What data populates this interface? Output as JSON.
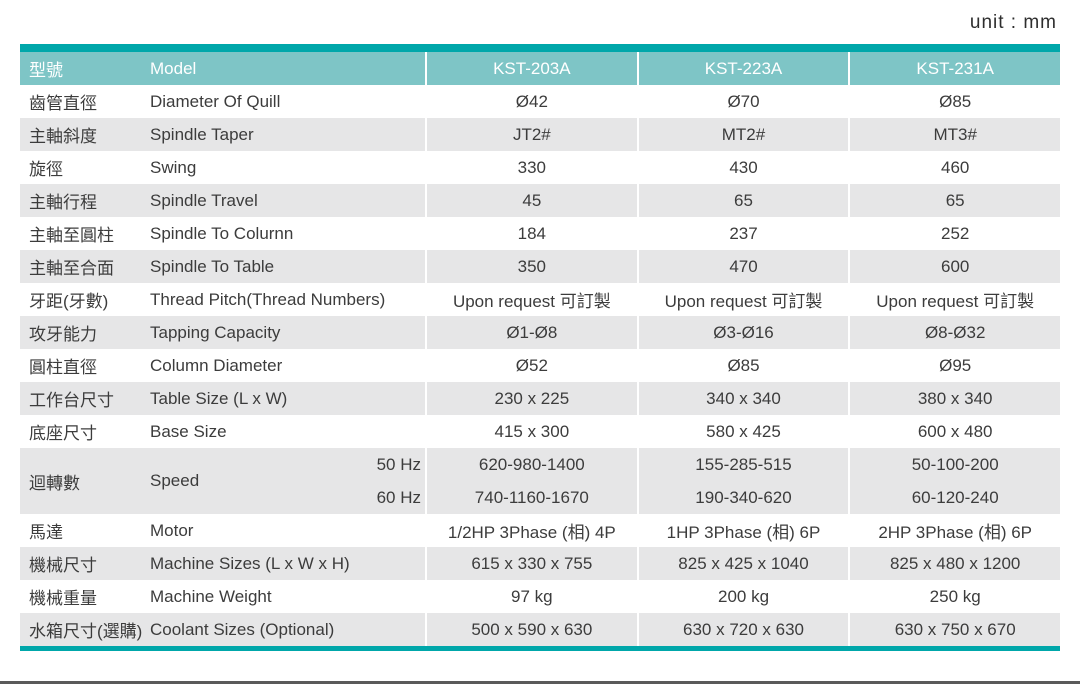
{
  "unit_label": "unit : mm",
  "colors": {
    "accent_teal": "#00a7aa",
    "header_teal": "#7ec5c6",
    "alt_row_gray": "#e6e6e7",
    "text_dark": "#3c3c3c"
  },
  "table": {
    "header": {
      "zh": "型號",
      "en": "Model",
      "models": [
        "KST-203A",
        "KST-223A",
        "KST-231A"
      ]
    },
    "rows_before_speed": [
      {
        "zh": "齒管直徑",
        "en": "Diameter Of Quill",
        "values": [
          "Ø42",
          "Ø70",
          "Ø85"
        ]
      },
      {
        "zh": "主軸斜度",
        "en": "Spindle Taper",
        "values": [
          "JT2#",
          "MT2#",
          "MT3#"
        ]
      },
      {
        "zh": "旋徑",
        "en": "Swing",
        "values": [
          "330",
          "430",
          "460"
        ]
      },
      {
        "zh": "主軸行程",
        "en": "Spindle Travel",
        "values": [
          "45",
          "65",
          "65"
        ]
      },
      {
        "zh": "主軸至圓柱",
        "en": "Spindle To Colurnn",
        "values": [
          "184",
          "237",
          "252"
        ]
      },
      {
        "zh": "主軸至合面",
        "en": "Spindle To Table",
        "values": [
          "350",
          "470",
          "600"
        ]
      },
      {
        "zh": "牙距(牙數)",
        "en": "Thread Pitch(Thread Numbers)",
        "values": [
          "Upon request 可訂製",
          "Upon request 可訂製",
          "Upon request 可訂製"
        ]
      },
      {
        "zh": "攻牙能力",
        "en": "Tapping Capacity",
        "values": [
          "Ø1-Ø8",
          "Ø3-Ø16",
          "Ø8-Ø32"
        ]
      },
      {
        "zh": "圓柱直徑",
        "en": "Column Diameter",
        "values": [
          "Ø52",
          "Ø85",
          "Ø95"
        ]
      },
      {
        "zh": "工作台尺寸",
        "en": "Table Size (L x W)",
        "values": [
          "230 x 225",
          "340 x 340",
          "380 x 340"
        ]
      },
      {
        "zh": "底座尺寸",
        "en": "Base Size",
        "values": [
          "415 x 300",
          "580 x 425",
          "600 x 480"
        ]
      }
    ],
    "speed_row": {
      "zh": "迴轉數",
      "en": "Speed",
      "hz": [
        "50 Hz",
        "60 Hz"
      ],
      "values_50hz": [
        "620-980-1400",
        "155-285-515",
        "50-100-200"
      ],
      "values_60hz": [
        "740-1160-1670",
        "190-340-620",
        "60-120-240"
      ]
    },
    "rows_after_speed": [
      {
        "zh": "馬達",
        "en": "Motor",
        "values": [
          "1/2HP 3Phase (相) 4P",
          "1HP 3Phase (相) 6P",
          "2HP 3Phase (相) 6P"
        ]
      },
      {
        "zh": "機械尺寸",
        "en": "Machine Sizes (L x W x H)",
        "values": [
          "615 x 330 x 755",
          "825 x 425 x 1040",
          "825 x 480 x 1200"
        ]
      },
      {
        "zh": "機械重量",
        "en": "Machine Weight",
        "values": [
          "97 kg",
          "200 kg",
          "250 kg"
        ]
      },
      {
        "zh": "水箱尺寸(選購)",
        "en": "Coolant Sizes (Optional)",
        "values": [
          "500 x 590 x 630",
          "630 x 720 x 630",
          "630 x 750 x 670"
        ]
      }
    ]
  }
}
